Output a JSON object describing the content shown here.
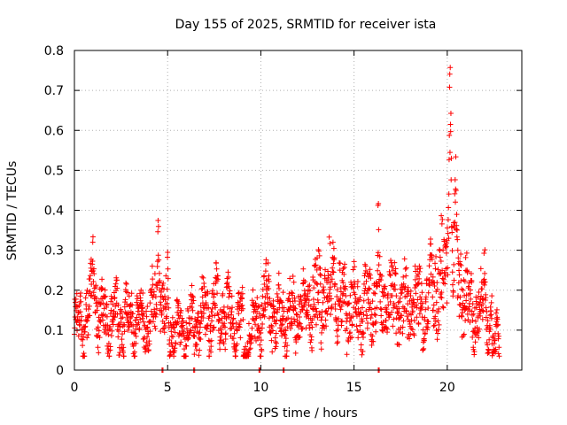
{
  "chart_data": {
    "type": "scatter",
    "title": "Day 155 of 2025, SRMTID for receiver ista",
    "xlabel": "GPS time / hours",
    "ylabel": "SRMTID / TECUs",
    "xlim": [
      0,
      24
    ],
    "ylim": [
      0,
      0.8
    ],
    "xticks": [
      0,
      5,
      10,
      15,
      20
    ],
    "xtick_labels": [
      "0",
      "5",
      "10",
      "15",
      "20"
    ],
    "yticks": [
      0,
      0.1,
      0.2,
      0.3,
      0.4,
      0.5,
      0.6,
      0.7,
      0.8
    ],
    "ytick_labels": [
      "0",
      "0.1",
      "0.2",
      "0.3",
      "0.4",
      "0.5",
      "0.6",
      "0.7",
      "0.8"
    ],
    "grid": true,
    "marker": "+",
    "color": "#ff0000",
    "series": [
      {
        "name": "SRMTID",
        "profile": [
          [
            0.0,
            0.11
          ],
          [
            0.5,
            0.12
          ],
          [
            1.0,
            0.17
          ],
          [
            1.5,
            0.13
          ],
          [
            2.0,
            0.13
          ],
          [
            2.5,
            0.12
          ],
          [
            3.0,
            0.13
          ],
          [
            3.5,
            0.12
          ],
          [
            4.0,
            0.13
          ],
          [
            4.5,
            0.18
          ],
          [
            5.0,
            0.12
          ],
          [
            5.5,
            0.1
          ],
          [
            6.0,
            0.1
          ],
          [
            6.5,
            0.12
          ],
          [
            7.0,
            0.13
          ],
          [
            7.5,
            0.14
          ],
          [
            8.0,
            0.15
          ],
          [
            8.5,
            0.12
          ],
          [
            9.0,
            0.12
          ],
          [
            9.5,
            0.09
          ],
          [
            10.0,
            0.15
          ],
          [
            10.5,
            0.15
          ],
          [
            11.0,
            0.13
          ],
          [
            11.5,
            0.14
          ],
          [
            12.0,
            0.14
          ],
          [
            12.5,
            0.16
          ],
          [
            13.0,
            0.18
          ],
          [
            13.5,
            0.19
          ],
          [
            14.0,
            0.18
          ],
          [
            14.5,
            0.16
          ],
          [
            15.0,
            0.17
          ],
          [
            15.5,
            0.16
          ],
          [
            16.0,
            0.16
          ],
          [
            16.5,
            0.17
          ],
          [
            17.0,
            0.17
          ],
          [
            17.5,
            0.16
          ],
          [
            18.0,
            0.16
          ],
          [
            18.5,
            0.16
          ],
          [
            19.0,
            0.17
          ],
          [
            19.5,
            0.22
          ],
          [
            20.0,
            0.28
          ],
          [
            20.5,
            0.25
          ],
          [
            21.0,
            0.17
          ],
          [
            21.5,
            0.15
          ],
          [
            22.0,
            0.13
          ],
          [
            22.5,
            0.11
          ],
          [
            22.8,
            0.1
          ]
        ],
        "spikes": [
          {
            "x": 20.15,
            "width": 0.18,
            "peak": 0.76
          },
          {
            "x": 20.45,
            "width": 0.15,
            "peak": 0.55
          },
          {
            "x": 16.3,
            "width": 0.1,
            "peak": 0.45
          },
          {
            "x": 4.5,
            "width": 0.15,
            "peak": 0.36
          },
          {
            "x": 1.0,
            "width": 0.2,
            "peak": 0.31
          },
          {
            "x": 13.9,
            "width": 0.2,
            "peak": 0.32
          },
          {
            "x": 10.3,
            "width": 0.15,
            "peak": 0.29
          },
          {
            "x": 7.6,
            "width": 0.12,
            "peak": 0.29
          },
          {
            "x": 22.0,
            "width": 0.15,
            "peak": 0.32
          },
          {
            "x": 19.1,
            "width": 0.2,
            "peak": 0.29
          },
          {
            "x": 5.0,
            "width": 0.1,
            "peak": 0.28
          }
        ],
        "dips": [
          {
            "x": 9.2,
            "width": 0.15,
            "depth": 0.01
          },
          {
            "x": 22.5,
            "width": 0.1,
            "depth": 0.035
          }
        ],
        "zero_markers": [
          4.7,
          6.4,
          9.9,
          11.2,
          16.3
        ]
      }
    ]
  }
}
